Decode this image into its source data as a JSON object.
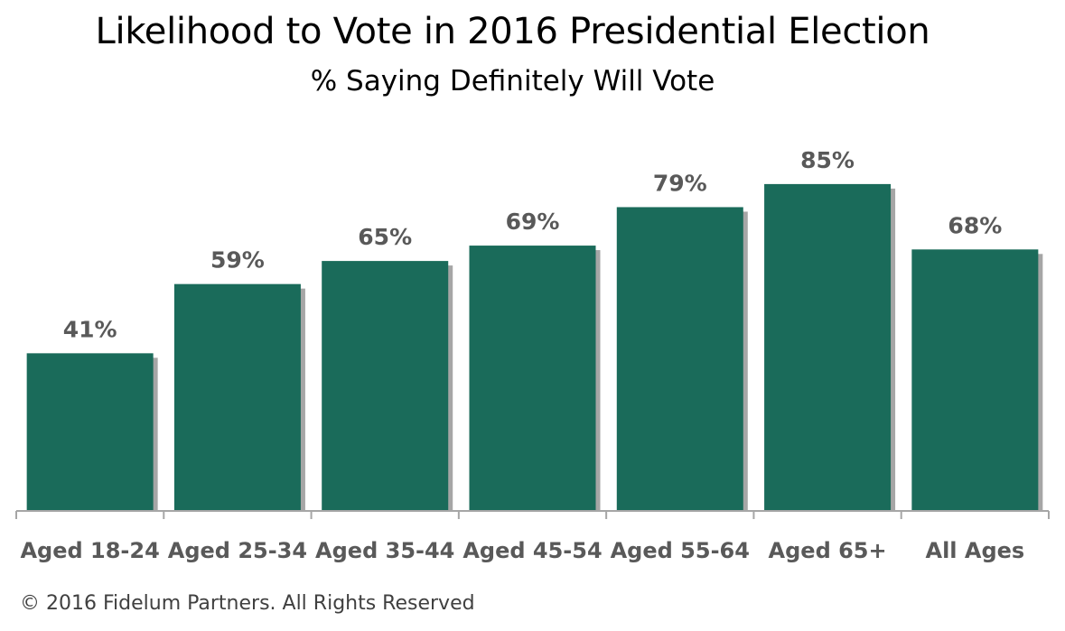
{
  "chart_data": {
    "type": "bar",
    "title": "Likelihood to Vote in 2016 Presidential Election",
    "subtitle": "% Saying Definitely Will Vote",
    "categories": [
      "Aged 18-24",
      "Aged 25-34",
      "Aged 35-44",
      "Aged 45-54",
      "Aged 55-64",
      "Aged 65+",
      "All Ages"
    ],
    "values": [
      41,
      59,
      65,
      69,
      79,
      85,
      68
    ],
    "data_labels": [
      "41%",
      "59%",
      "65%",
      "69%",
      "79%",
      "85%",
      "68%"
    ],
    "xlabel": "",
    "ylabel": "",
    "ylim": [
      0,
      100
    ],
    "grid": false,
    "bar_color": "#1a6b5a",
    "shadow_color": "#a6a6a6"
  },
  "footer": {
    "copyright": "© 2016 Fidelum Partners. All Rights Reserved"
  }
}
